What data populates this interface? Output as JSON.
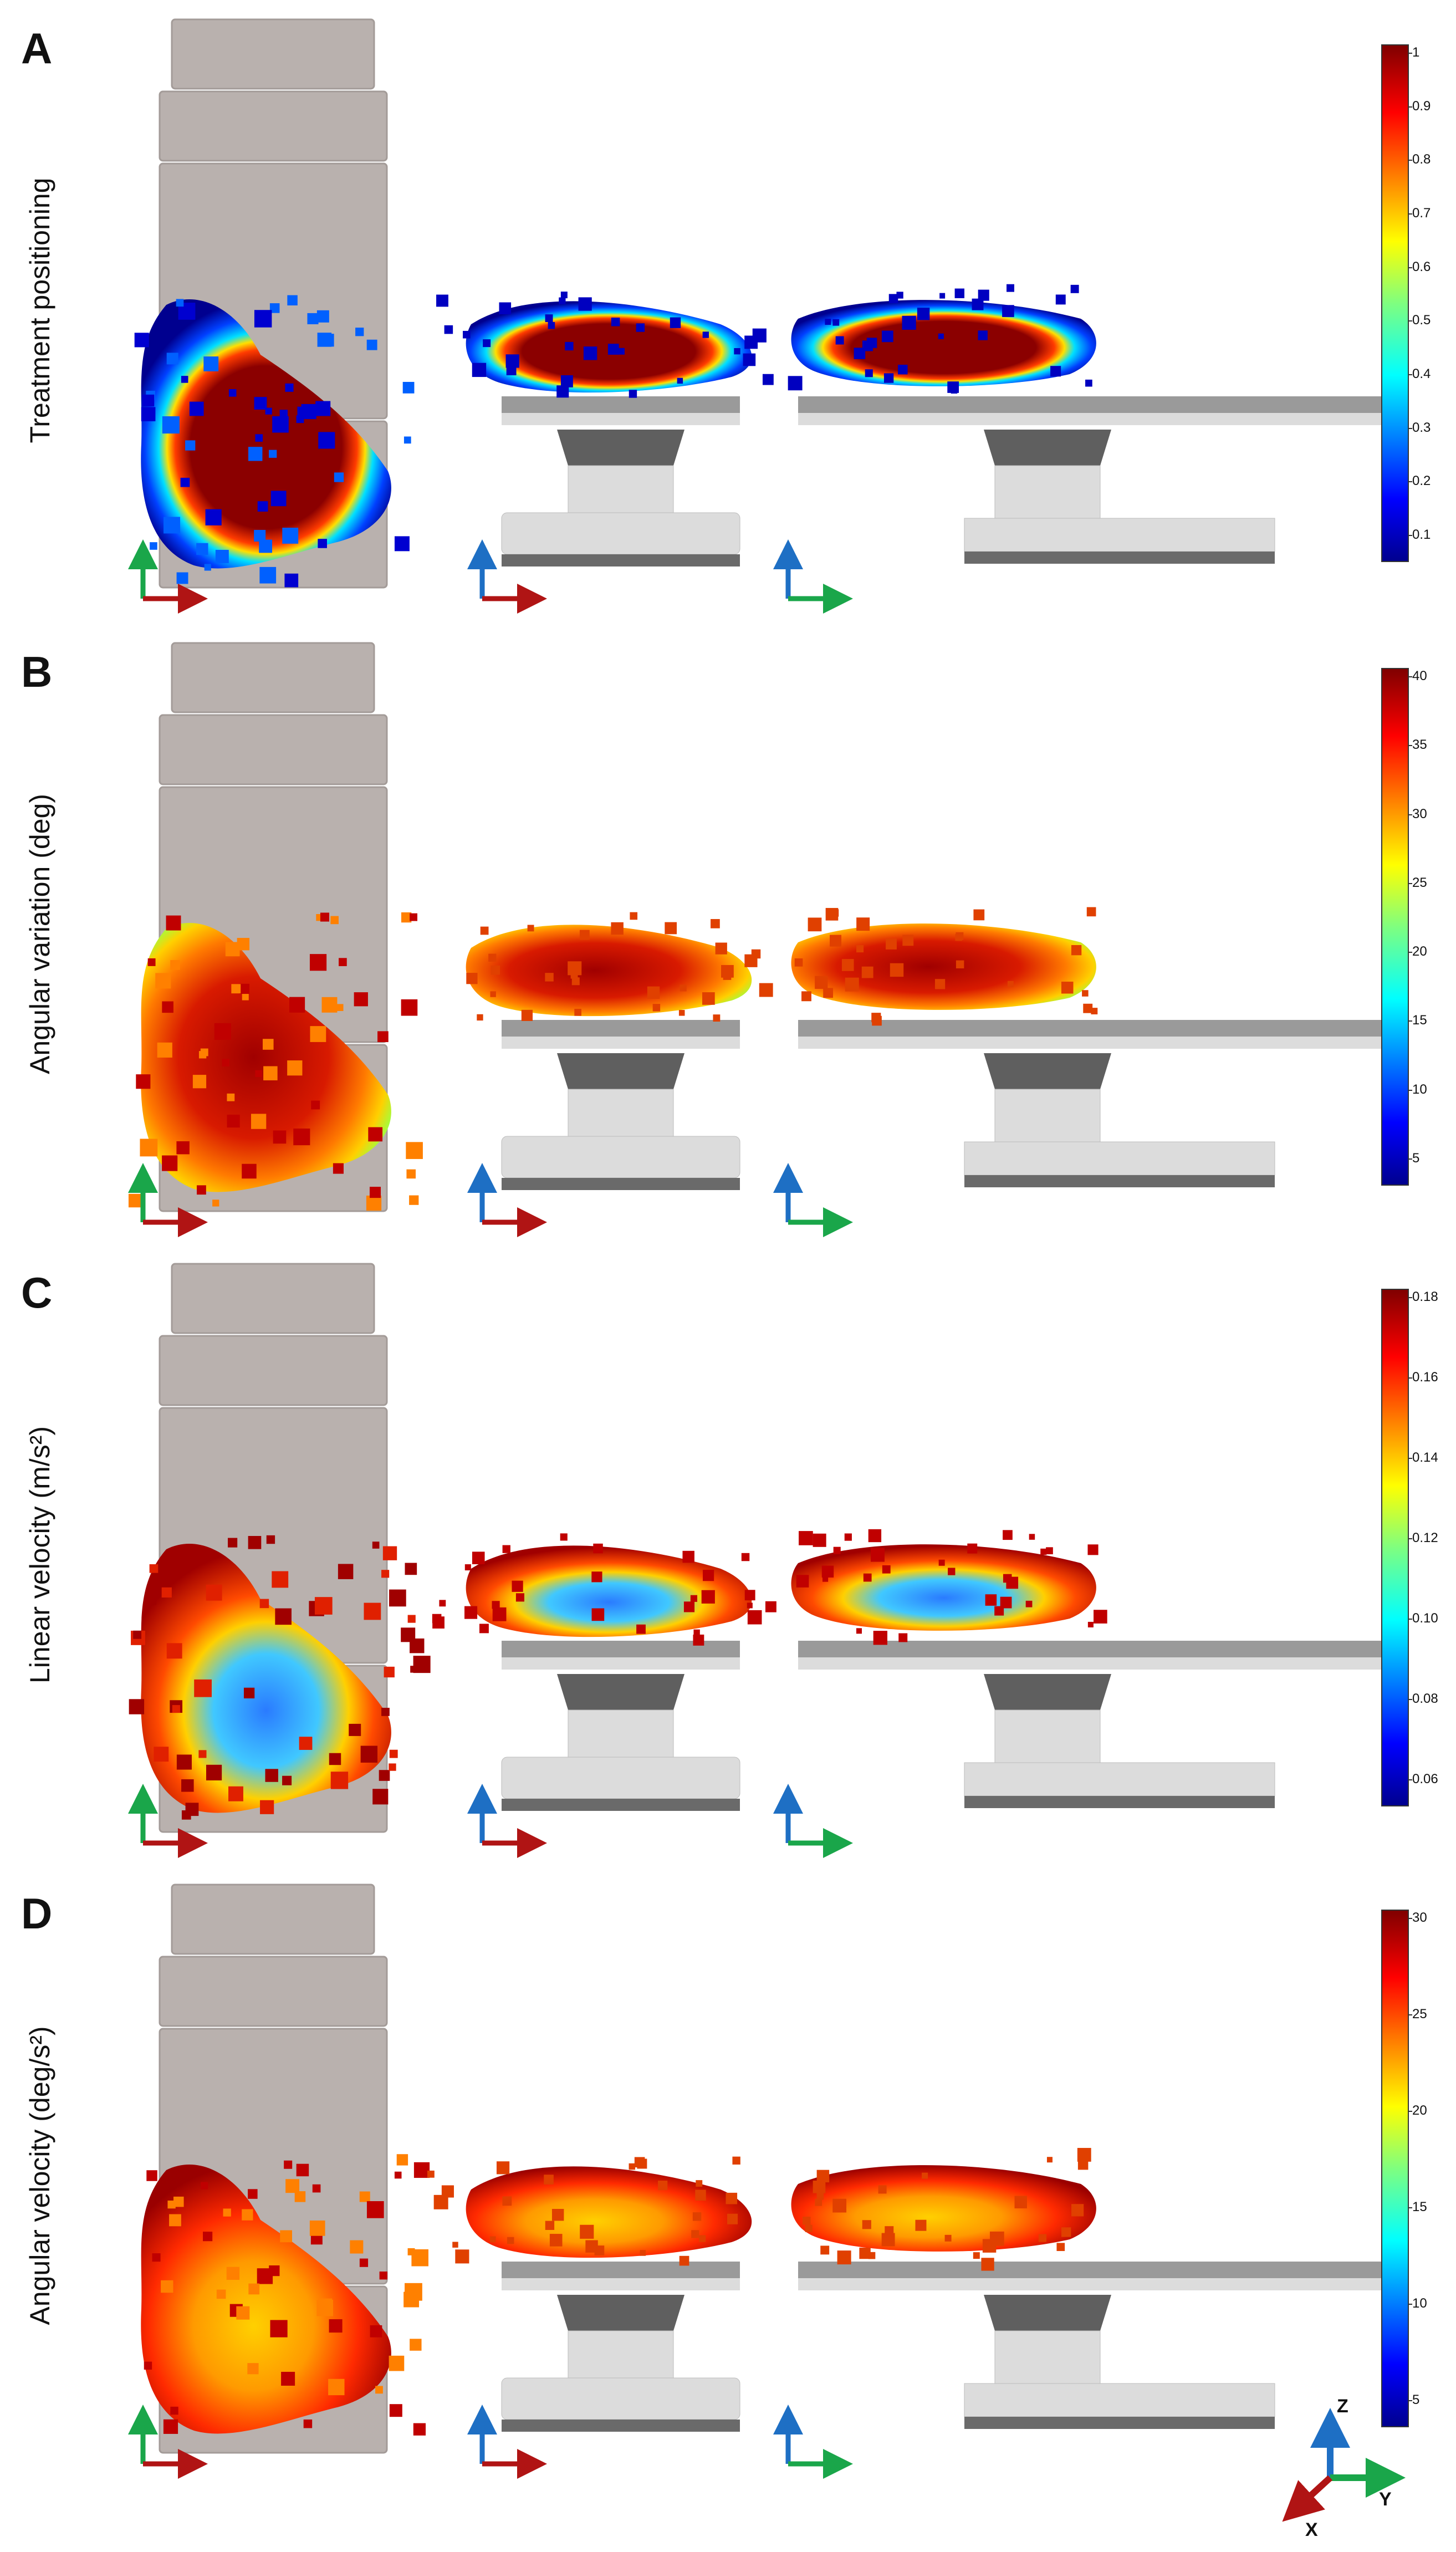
{
  "colors": {
    "red": "#b01414",
    "green": "#1aa64a",
    "blue": "#1e6fc4",
    "body_block": "#b9b1ae",
    "table_light": "#dcdcdc",
    "table_dark": "#6a6a6a"
  },
  "panels": [
    {
      "letter": "A",
      "ylabel": "Treatment positioning",
      "colorbar": {
        "ticks": [
          "1",
          "0.9",
          "0.8",
          "0.7",
          "0.6",
          "0.5",
          "0.4",
          "0.3",
          "0.2",
          "0.1"
        ]
      }
    },
    {
      "letter": "B",
      "ylabel": "Angular variation (deg)",
      "colorbar": {
        "ticks": [
          "40",
          "35",
          "30",
          "25",
          "20",
          "15",
          "10",
          "5"
        ]
      }
    },
    {
      "letter": "C",
      "ylabel": "Linear velocity (m/s²)",
      "colorbar": {
        "ticks": [
          "0.18",
          "0.16",
          "0.14",
          "0.12",
          "0.10",
          "0.08",
          "0.06"
        ]
      }
    },
    {
      "letter": "D",
      "ylabel": "Angular velocity  (deg/s²)",
      "colorbar": {
        "ticks": [
          "30",
          "25",
          "20",
          "15",
          "10",
          "5"
        ]
      }
    }
  ],
  "axes_legend": {
    "z": "Z",
    "y": "Y",
    "x": "X"
  }
}
